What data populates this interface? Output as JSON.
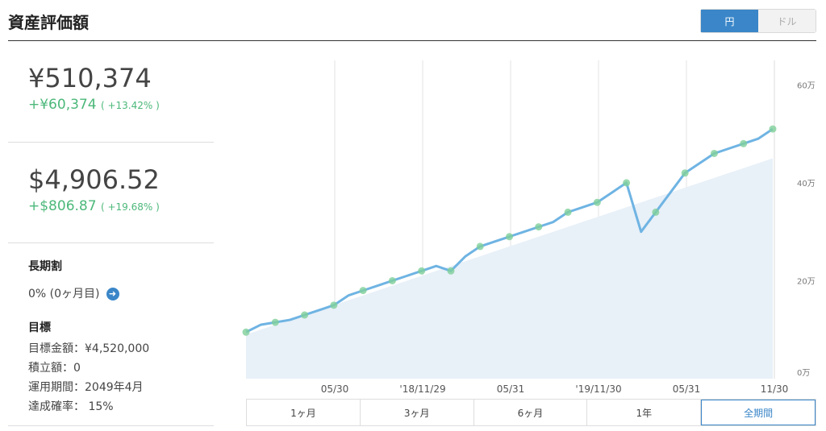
{
  "header": {
    "title": "資産評価額",
    "currency_options": [
      "円",
      "ドル"
    ],
    "selected_currency": "円"
  },
  "summary": {
    "yen_total": "¥510,374",
    "yen_gain": "+¥60,374",
    "yen_gain_pct": "( +13.42% )",
    "usd_total": "$4,906.52",
    "usd_gain": "+$806.87",
    "usd_gain_pct": "( +19.68% )"
  },
  "discount": {
    "title": "長期割",
    "value": "0% (0ヶ月目)"
  },
  "goal": {
    "title": "目標",
    "amount": "目標金額：¥4,520,000",
    "monthly": "積立額：0",
    "period": "運用期間：2049年4月",
    "probability": "達成確率： 15%"
  },
  "range_tabs": [
    "1ヶ月",
    "3ヶ月",
    "6ヶ月",
    "1年",
    "全期間"
  ],
  "selected_range": "全期間",
  "colors": {
    "accent": "#3a86c8",
    "gain": "#4cb87a",
    "line": "#6fb4e3",
    "area": "#e8f0f8"
  },
  "chart_data": {
    "type": "line",
    "x_ticks": [
      "05/30",
      "'18/11/29",
      "05/31",
      "'19/11/30",
      "05/31",
      "11/30"
    ],
    "y_ticks": [
      "0万",
      "20万",
      "40万",
      "60万"
    ],
    "ylim": [
      0,
      65
    ],
    "y_unit": "万",
    "series": [
      {
        "values": [
          9.5,
          11,
          11.5,
          12,
          13,
          14,
          15,
          17,
          18,
          19,
          20,
          21,
          22,
          23,
          22,
          25,
          27,
          28,
          29,
          30,
          31,
          32,
          34,
          35,
          36,
          38,
          40,
          30,
          34,
          38,
          42,
          44,
          46,
          47,
          48,
          49,
          51
        ]
      }
    ],
    "invested": [
      9,
      10,
      11,
      12,
      13,
      14,
      15,
      16,
      17,
      18,
      19,
      20,
      21,
      22,
      23,
      24,
      25,
      26,
      27,
      28,
      29,
      30,
      31,
      32,
      33,
      34,
      35,
      36,
      37,
      38,
      39,
      40,
      41,
      42,
      43,
      44,
      45
    ]
  }
}
